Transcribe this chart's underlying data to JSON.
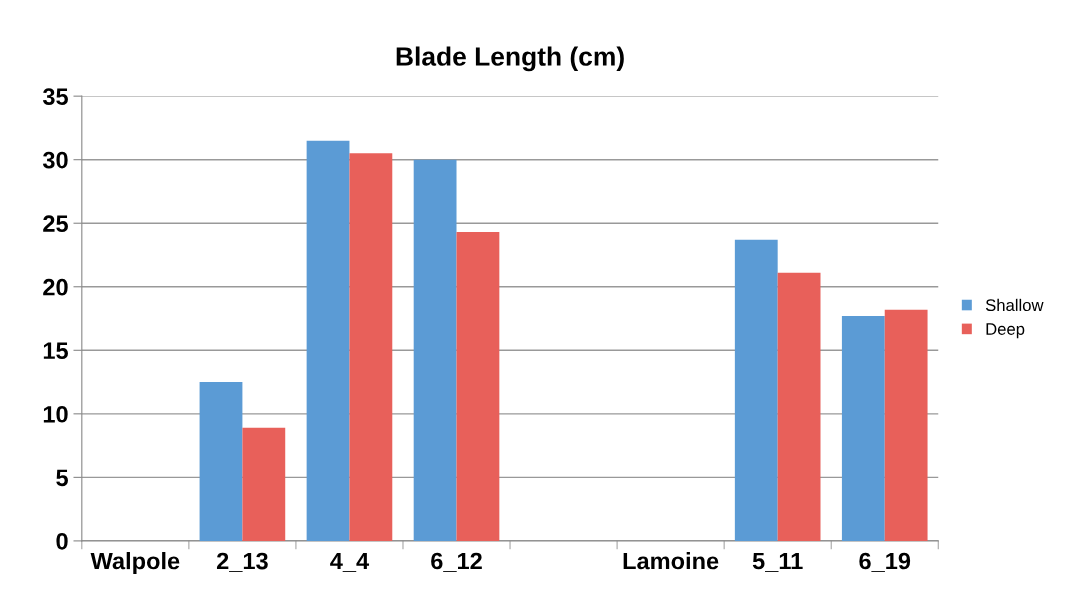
{
  "chart_data": {
    "type": "bar",
    "title": "Blade Length (cm)",
    "categories": [
      "Walpole",
      "2_13",
      "4_4",
      "6_12",
      null,
      "Lamoine",
      "5_11",
      "6_19"
    ],
    "series": [
      {
        "name": "Shallow",
        "color": "#5b9bd5",
        "values": [
          null,
          12.5,
          31.5,
          30.0,
          null,
          null,
          23.7,
          17.7
        ]
      },
      {
        "name": "Deep",
        "color": "#e8605a",
        "values": [
          null,
          8.9,
          30.5,
          24.3,
          null,
          null,
          21.1,
          18.2
        ]
      }
    ],
    "ylim": [
      0,
      35
    ],
    "yticks": [
      0,
      5,
      10,
      15,
      20,
      25,
      30,
      35
    ],
    "grid": "y",
    "legend": "right"
  }
}
